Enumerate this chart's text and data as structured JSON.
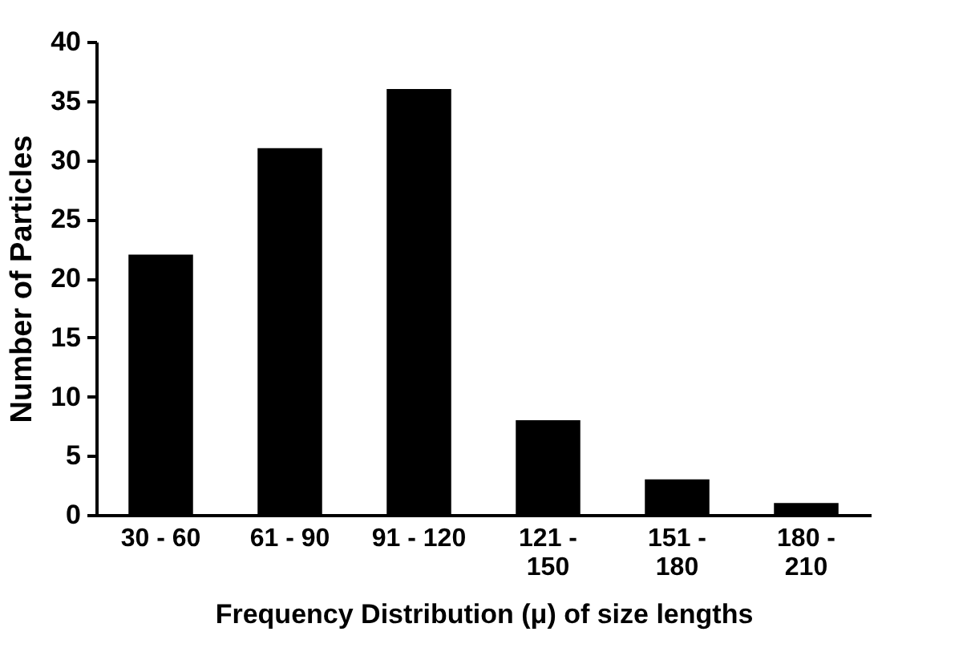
{
  "chart_data": {
    "type": "bar",
    "xlabel": "Frequency Distribution (μ) of size lengths",
    "ylabel": "Number of Particles",
    "categories": [
      "30 - 60",
      "61 - 90",
      "91 - 120",
      "121 - 150",
      "151 - 180",
      "180 - 210"
    ],
    "values": [
      22,
      31,
      36,
      8,
      3,
      1
    ],
    "color": "#000000",
    "ylim": [
      0,
      40
    ],
    "yticks": [
      0,
      5,
      10,
      15,
      20,
      25,
      30,
      35,
      40
    ],
    "grid": false
  }
}
